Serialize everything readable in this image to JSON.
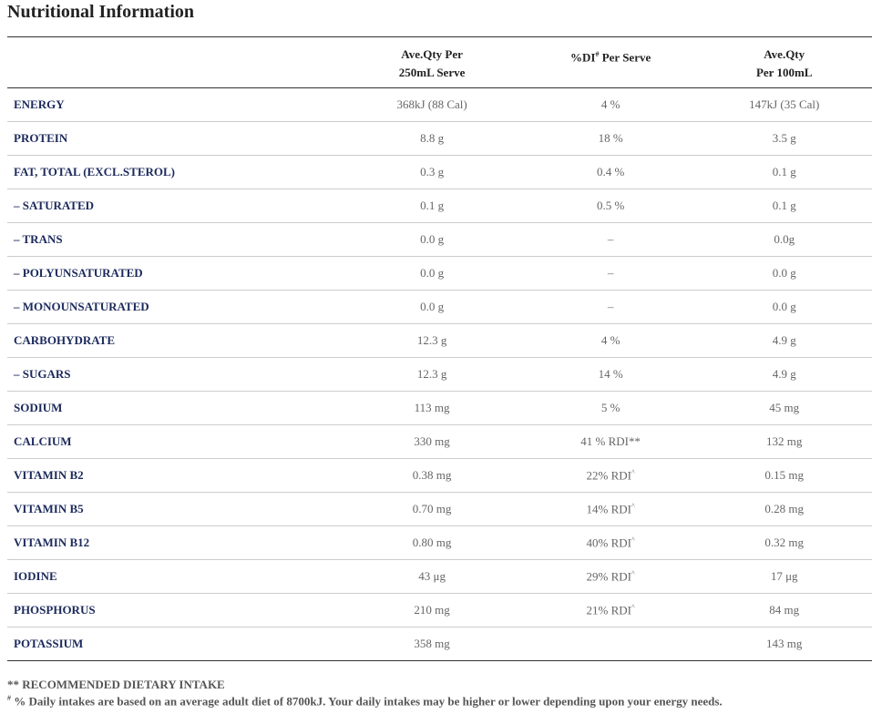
{
  "header": {
    "title": "Nutritional Information"
  },
  "table": {
    "columns": [
      null,
      {
        "lines": [
          "Ave.Qty Per",
          "250mL Serve"
        ]
      },
      {
        "lines": [
          {
            "text": "%DI",
            "sup": "#",
            "after": " Per Serve"
          }
        ]
      },
      {
        "lines": [
          "Ave.Qty",
          "Per 100mL"
        ]
      }
    ],
    "rows": [
      [
        "ENERGY",
        "368kJ (88 Cal)",
        "4 %",
        "147kJ (35 Cal)"
      ],
      [
        "PROTEIN",
        "8.8 g",
        "18 %",
        "3.5 g"
      ],
      [
        "FAT, TOTAL (EXCL.STEROL)",
        "0.3 g",
        "0.4 %",
        "0.1 g"
      ],
      [
        "– SATURATED",
        "0.1 g",
        "0.5 %",
        "0.1 g"
      ],
      [
        "– TRANS",
        "0.0 g",
        "–",
        "0.0g"
      ],
      [
        "– POLYUNSATURATED",
        "0.0 g",
        "–",
        "0.0 g"
      ],
      [
        "– MONOUNSATURATED",
        "0.0 g",
        "–",
        "0.0 g"
      ],
      [
        "CARBOHYDRATE",
        "12.3 g",
        "4 %",
        "4.9 g"
      ],
      [
        "– SUGARS",
        "12.3 g",
        "14 %",
        "4.9 g"
      ],
      [
        "SODIUM",
        "113 mg",
        "5 %",
        "45 mg"
      ],
      [
        "CALCIUM",
        "330 mg",
        "41 % RDI**",
        "132 mg"
      ],
      [
        "VITAMIN B2",
        "0.38 mg",
        {
          "text": "22% RDI",
          "sup": "^"
        },
        "0.15 mg"
      ],
      [
        "VITAMIN B5",
        "0.70 mg",
        {
          "text": "14% RDI",
          "sup": "^"
        },
        "0.28 mg"
      ],
      [
        "VITAMIN B12",
        "0.80 mg",
        {
          "text": "40% RDI",
          "sup": "^"
        },
        "0.32 mg"
      ],
      [
        "IODINE",
        "43 μg",
        {
          "text": "29% RDI",
          "sup": "^"
        },
        "17 μg"
      ],
      [
        "PHOSPHORUS",
        "210 mg",
        {
          "text": "21% RDI",
          "sup": "^"
        },
        "84 mg"
      ],
      [
        "POTASSIUM",
        "358 mg",
        null,
        "143 mg"
      ]
    ]
  },
  "footnotes": [
    {
      "text": "** RECOMMENDED DIETARY INTAKE"
    },
    {
      "sup": "#",
      "text": " % Daily intakes are based on an average adult diet of 8700kJ. Your daily intakes may be higher or lower depending upon your energy needs."
    }
  ]
}
